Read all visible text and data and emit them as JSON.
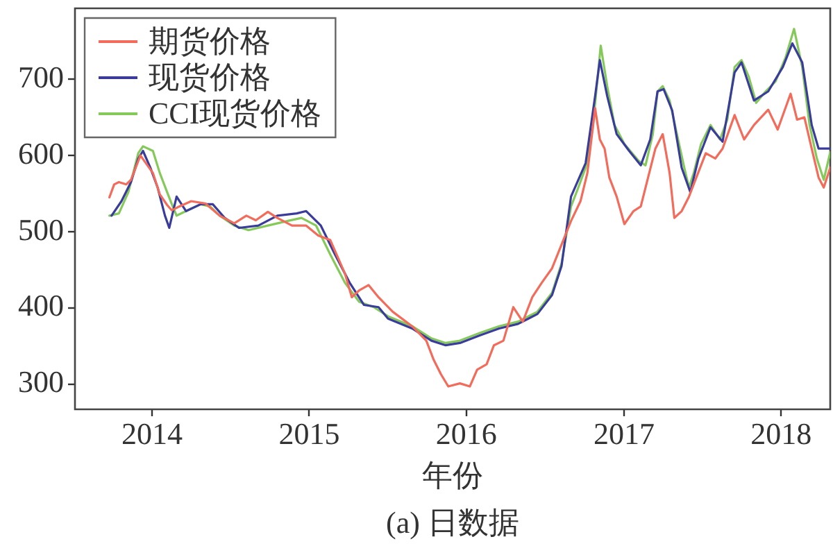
{
  "chart_data": {
    "type": "line",
    "xlabel": "年份",
    "annotations": [
      "(a) 日数据"
    ],
    "xlim": [
      "2013-07-06",
      "2018-04-25"
    ],
    "xticks": [
      "2014",
      "2015",
      "2016",
      "2017",
      "2018"
    ],
    "ylim": [
      267,
      793
    ],
    "yticks": [
      300,
      400,
      500,
      600,
      700
    ],
    "grid": false,
    "legend": "top left",
    "marker": "none",
    "line_style": "solid",
    "series": [
      {
        "name": "期货价格",
        "color": "#f26b5b",
        "x": [
          "2013-09-24",
          "2013-10-05",
          "2013-10-16",
          "2013-11-02",
          "2013-11-13",
          "2013-12-05",
          "2014-01-03",
          "2014-01-19",
          "2014-02-05",
          "2014-02-16",
          "2014-03-05",
          "2014-04-02",
          "2014-05-05",
          "2014-06-07",
          "2014-07-11",
          "2014-08-08",
          "2014-08-30",
          "2014-09-27",
          "2014-10-19",
          "2014-11-22",
          "2014-12-25",
          "2015-01-22",
          "2015-02-19",
          "2015-03-25",
          "2015-04-10",
          "2015-04-27",
          "2015-05-19",
          "2015-06-11",
          "2015-07-14",
          "2015-08-28",
          "2015-09-30",
          "2015-10-17",
          "2015-11-03",
          "2015-11-20",
          "2015-12-17",
          "2016-01-09",
          "2016-01-26",
          "2016-02-17",
          "2016-03-05",
          "2016-03-27",
          "2016-04-19",
          "2016-05-11",
          "2016-06-02",
          "2016-06-24",
          "2016-07-18",
          "2016-08-09",
          "2016-08-31",
          "2016-09-22",
          "2016-10-08",
          "2016-10-26",
          "2016-11-06",
          "2016-11-17",
          "2016-11-28",
          "2016-12-15",
          "2017-01-02",
          "2017-01-23",
          "2017-02-09",
          "2017-02-26",
          "2017-03-15",
          "2017-04-01",
          "2017-04-17",
          "2017-04-28",
          "2017-05-15",
          "2017-06-01",
          "2017-06-18",
          "2017-07-10",
          "2017-08-01",
          "2017-08-18",
          "2017-09-15",
          "2017-10-07",
          "2017-10-30",
          "2017-12-02",
          "2017-12-24",
          "2018-01-23",
          "2018-02-07",
          "2018-02-24",
          "2018-03-13",
          "2018-03-29",
          "2018-04-10",
          "2018-04-25"
        ],
        "values": [
          545,
          562,
          565,
          562,
          568,
          600,
          577,
          549,
          535,
          528,
          533,
          540,
          537,
          521,
          511,
          521,
          515,
          526,
          518,
          508,
          508,
          495,
          489,
          445,
          414,
          423,
          430,
          414,
          395,
          376,
          357,
          332,
          313,
          297,
          301,
          297,
          319,
          326,
          351,
          357,
          401,
          382,
          414,
          433,
          452,
          483,
          514,
          540,
          577,
          662,
          621,
          609,
          571,
          546,
          510,
          527,
          533,
          571,
          609,
          628,
          577,
          518,
          527,
          546,
          571,
          603,
          596,
          609,
          653,
          621,
          640,
          660,
          634,
          681,
          647,
          650,
          609,
          571,
          558,
          584
        ]
      },
      {
        "name": "现货价格",
        "color": "#3a3c9c",
        "x": [
          "2013-09-29",
          "2013-10-22",
          "2013-11-13",
          "2013-11-30",
          "2013-12-11",
          "2013-12-28",
          "2014-01-14",
          "2014-01-31",
          "2014-02-10",
          "2014-02-27",
          "2014-03-21",
          "2014-04-24",
          "2014-05-22",
          "2014-06-19",
          "2014-07-22",
          "2014-09-05",
          "2014-10-19",
          "2014-12-03",
          "2014-12-25",
          "2015-01-28",
          "2015-03-02",
          "2015-04-05",
          "2015-05-08",
          "2015-06-11",
          "2015-07-03",
          "2015-08-28",
          "2015-10-12",
          "2015-11-14",
          "2015-12-17",
          "2016-02-01",
          "2016-03-17",
          "2016-04-30",
          "2016-06-14",
          "2016-07-18",
          "2016-08-09",
          "2016-08-31",
          "2016-10-04",
          "2016-10-26",
          "2016-11-06",
          "2016-11-23",
          "2016-12-15",
          "2017-01-13",
          "2017-02-09",
          "2017-03-03",
          "2017-03-20",
          "2017-04-03",
          "2017-04-23",
          "2017-05-15",
          "2017-06-04",
          "2017-06-23",
          "2017-07-21",
          "2017-08-18",
          "2017-09-15",
          "2017-10-01",
          "2017-10-30",
          "2017-12-02",
          "2018-01-05",
          "2018-01-27",
          "2018-02-19",
          "2018-03-13",
          "2018-03-29",
          "2018-04-25"
        ],
        "values": [
          521,
          540,
          565,
          596,
          606,
          584,
          558,
          521,
          505,
          546,
          527,
          536,
          536,
          518,
          505,
          508,
          521,
          524,
          527,
          508,
          470,
          433,
          404,
          401,
          386,
          373,
          357,
          351,
          354,
          364,
          373,
          379,
          392,
          417,
          455,
          546,
          590,
          678,
          725,
          678,
          628,
          606,
          587,
          621,
          684,
          687,
          659,
          584,
          552,
          596,
          637,
          618,
          709,
          722,
          672,
          684,
          716,
          747,
          722,
          640,
          609,
          609
        ]
      },
      {
        "name": "CCI现货价格",
        "color": "#86c95b",
        "x": [
          "2013-09-24",
          "2013-10-16",
          "2013-11-07",
          "2013-11-30",
          "2013-12-11",
          "2014-01-03",
          "2014-01-19",
          "2014-02-05",
          "2014-02-16",
          "2014-02-27",
          "2014-03-21",
          "2014-04-24",
          "2014-05-16",
          "2014-06-07",
          "2014-07-11",
          "2014-08-13",
          "2014-09-27",
          "2014-11-11",
          "2014-12-14",
          "2015-01-17",
          "2015-02-19",
          "2015-03-25",
          "2015-04-27",
          "2015-05-31",
          "2015-07-03",
          "2015-08-28",
          "2015-10-12",
          "2015-11-14",
          "2015-12-17",
          "2016-02-01",
          "2016-03-17",
          "2016-04-30",
          "2016-06-14",
          "2016-07-18",
          "2016-08-09",
          "2016-08-31",
          "2016-09-17",
          "2016-10-04",
          "2016-10-20",
          "2016-11-01",
          "2016-11-08",
          "2016-11-23",
          "2016-12-10",
          "2017-01-02",
          "2017-02-04",
          "2017-02-20",
          "2017-03-09",
          "2017-03-20",
          "2017-04-01",
          "2017-04-17",
          "2017-05-04",
          "2017-05-21",
          "2017-06-01",
          "2017-06-12",
          "2017-06-29",
          "2017-07-21",
          "2017-08-12",
          "2017-08-29",
          "2017-09-15",
          "2017-10-01",
          "2017-10-18",
          "2017-11-04",
          "2017-11-26",
          "2017-12-19",
          "2018-01-11",
          "2018-01-31",
          "2018-02-19",
          "2018-03-08",
          "2018-03-25",
          "2018-04-10",
          "2018-04-25"
        ],
        "values": [
          521,
          524,
          552,
          603,
          612,
          606,
          577,
          552,
          536,
          521,
          527,
          536,
          533,
          521,
          508,
          502,
          508,
          514,
          518,
          508,
          470,
          433,
          408,
          401,
          389,
          376,
          360,
          354,
          357,
          367,
          376,
          382,
          395,
          420,
          458,
          533,
          558,
          584,
          634,
          703,
          744,
          691,
          640,
          615,
          593,
          587,
          628,
          684,
          691,
          672,
          628,
          584,
          558,
          577,
          615,
          640,
          621,
          647,
          716,
          725,
          703,
          669,
          684,
          697,
          728,
          766,
          716,
          640,
          596,
          568,
          604
        ]
      }
    ]
  }
}
